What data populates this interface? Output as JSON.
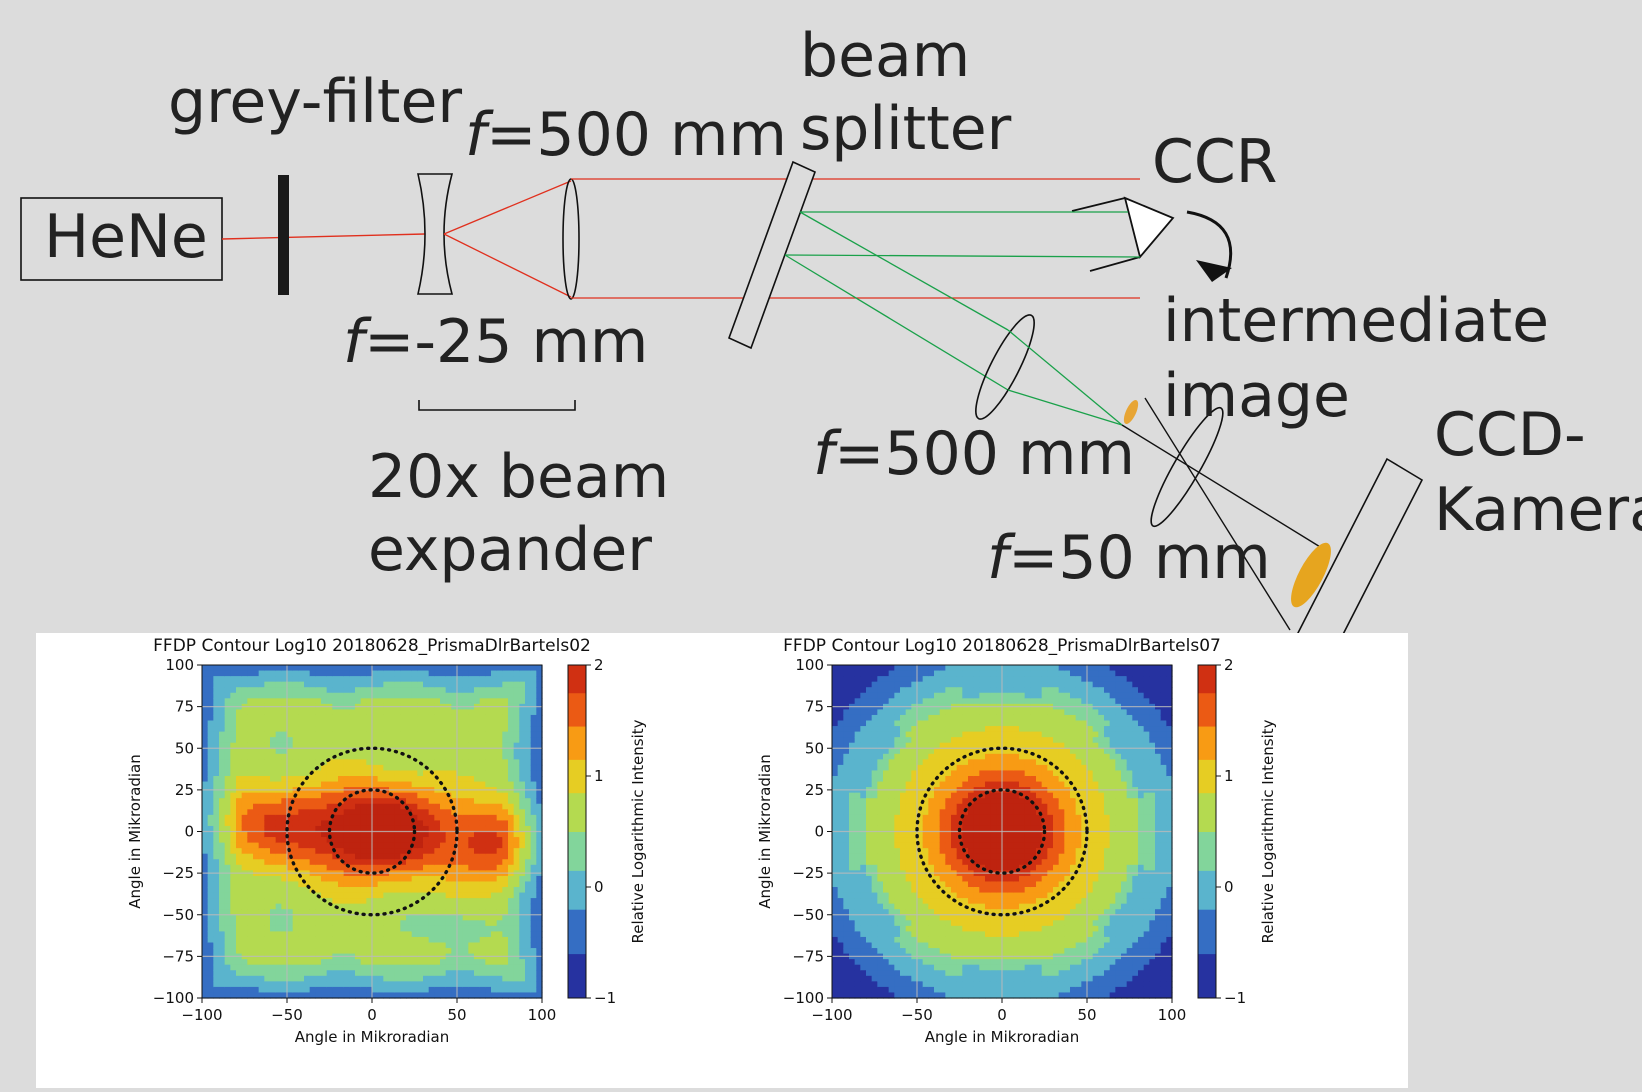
{
  "labels": {
    "hene": "HeNe",
    "grey_filter": "grey-filter",
    "f_prefix": "f",
    "f500_top": "=500 mm",
    "f_neg25": "=-25 mm",
    "expander_line1": "20x beam",
    "expander_line2": "expander",
    "beam_splitter_line1": "beam",
    "beam_splitter_line2": "splitter",
    "ccr": "CCR",
    "intermediate_line1": "intermediate",
    "intermediate_line2": "image",
    "f500_lower": "=500 mm",
    "f50": "=50 mm",
    "ccd_line1": "CCD-",
    "ccd_line2": "Kamera"
  },
  "colors": {
    "background": "#dcdcdc",
    "red_beam": "#e0301e",
    "green_beam": "#1aa14a",
    "outline": "#111111"
  },
  "chart_data": [
    {
      "type": "heatmap",
      "title": "FFDP Contour Log10 20180628_PrismaDlrBartels02",
      "xlabel": "Angle in Mikroradian",
      "ylabel": "Angle in Mikroradian",
      "xlim": [
        -100,
        100
      ],
      "ylim": [
        -100,
        100
      ],
      "xticks": [
        "−100",
        "−50",
        "0",
        "50",
        "100"
      ],
      "yticks": [
        "100",
        "75",
        "50",
        "25",
        "0",
        "−25",
        "−50",
        "−75",
        "−100"
      ],
      "grid": true,
      "colorbar_label": "Relative Logarithmic Intensity",
      "colorbar_range": [
        -1,
        2
      ],
      "colorbar_ticks": [
        "2",
        "1",
        "0",
        "−1"
      ],
      "dotted_circle_radii": [
        25,
        50
      ],
      "peak_center": [
        0,
        0
      ],
      "shape": "elongated horizontally, asymmetric"
    },
    {
      "type": "heatmap",
      "title": "FFDP Contour Log10 20180628_PrismaDlrBartels07",
      "xlabel": "Angle in Mikroradian",
      "ylabel": "Angle in Mikroradian",
      "xlim": [
        -100,
        100
      ],
      "ylim": [
        -100,
        100
      ],
      "xticks": [
        "−100",
        "−50",
        "0",
        "50",
        "100"
      ],
      "yticks": [
        "100",
        "75",
        "50",
        "25",
        "0",
        "−25",
        "−50",
        "−75",
        "−100"
      ],
      "grid": true,
      "colorbar_label": "Relative Logarithmic Intensity",
      "colorbar_range": [
        -1,
        2
      ],
      "colorbar_ticks": [
        "2",
        "1",
        "0",
        "−1"
      ],
      "dotted_circle_radii": [
        25,
        50
      ],
      "peak_center": [
        0,
        0
      ],
      "shape": "circular, symmetric"
    }
  ]
}
